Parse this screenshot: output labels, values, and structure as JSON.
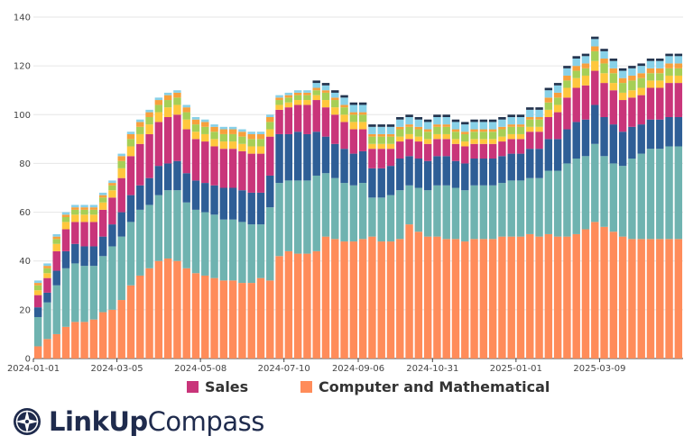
{
  "chart_data": {
    "type": "bar",
    "stacked": true,
    "ylim": [
      0,
      140
    ],
    "y_ticks": [
      0,
      20,
      40,
      60,
      80,
      100,
      120,
      140
    ],
    "x_tick_labels": [
      "2024-01-01",
      "2024-03-05",
      "2024-05-08",
      "2024-07-10",
      "2024-09-06",
      "2024-10-31",
      "2025-01-01",
      "2025-03-09"
    ],
    "grid": "horizontal",
    "legend_position": "bottom",
    "legend_visible": [
      "Sales",
      "Computer and Mathematical"
    ],
    "colors": [
      "#ff8c5a",
      "#6fb3b0",
      "#2e5e96",
      "#c9357a",
      "#ffc73d",
      "#a6cf56",
      "#f7a03c",
      "#88d1e8",
      "#23344f"
    ],
    "x": [
      "2024-01-01",
      "2024-01-08",
      "2024-01-15",
      "2024-01-22",
      "2024-01-29",
      "2024-02-05",
      "2024-02-12",
      "2024-02-19",
      "2024-02-26",
      "2024-03-05",
      "2024-03-12",
      "2024-03-19",
      "2024-03-26",
      "2024-04-02",
      "2024-04-09",
      "2024-04-16",
      "2024-04-23",
      "2024-04-30",
      "2024-05-08",
      "2024-05-15",
      "2024-05-22",
      "2024-05-29",
      "2024-06-05",
      "2024-06-12",
      "2024-06-19",
      "2024-06-26",
      "2024-07-03",
      "2024-07-10",
      "2024-07-17",
      "2024-07-24",
      "2024-07-31",
      "2024-08-07",
      "2024-08-14",
      "2024-08-21",
      "2024-08-28",
      "2024-09-06",
      "2024-09-13",
      "2024-09-20",
      "2024-09-27",
      "2024-10-04",
      "2024-10-11",
      "2024-10-18",
      "2024-10-25",
      "2024-10-31",
      "2024-11-07",
      "2024-11-14",
      "2024-11-21",
      "2024-11-28",
      "2024-12-05",
      "2024-12-12",
      "2024-12-19",
      "2024-12-26",
      "2025-01-01",
      "2025-01-08",
      "2025-01-15",
      "2025-01-22",
      "2025-01-29",
      "2025-02-05",
      "2025-02-12",
      "2025-02-19",
      "2025-02-26",
      "2025-03-09",
      "2025-03-16",
      "2025-03-23",
      "2025-03-30",
      "2025-04-06",
      "2025-04-13",
      "2025-04-20",
      "2025-04-27",
      "2025-05-04"
    ],
    "series": [
      {
        "name": "Computer and Mathematical",
        "values": [
          5,
          8,
          10,
          13,
          15,
          15,
          16,
          19,
          20,
          24,
          30,
          34,
          37,
          40,
          41,
          40,
          37,
          35,
          34,
          33,
          32,
          32,
          31,
          31,
          33,
          32,
          42,
          44,
          43,
          43,
          44,
          50,
          49,
          48,
          48,
          49,
          50,
          48,
          48,
          49,
          55,
          52,
          50,
          50,
          49,
          49,
          48,
          49,
          49,
          49,
          50,
          50,
          50,
          51,
          50,
          51,
          50,
          50,
          51,
          53,
          56,
          54,
          52,
          50,
          49,
          49,
          49,
          49,
          49,
          49
        ]
      },
      {
        "name": "",
        "values": [
          12,
          15,
          20,
          24,
          24,
          23,
          22,
          23,
          26,
          26,
          26,
          27,
          26,
          27,
          28,
          29,
          27,
          26,
          26,
          26,
          25,
          25,
          25,
          24,
          22,
          30,
          30,
          29,
          30,
          30,
          31,
          26,
          25,
          24,
          23,
          23,
          16,
          18,
          19,
          20,
          16,
          18,
          19,
          21,
          22,
          21,
          21,
          22,
          22,
          22,
          22,
          23,
          23,
          23,
          24,
          26,
          27,
          30,
          31,
          30,
          32,
          29,
          28,
          29,
          33,
          35,
          37,
          37,
          38,
          38
        ]
      },
      {
        "name": "",
        "values": [
          4,
          4,
          6,
          7,
          8,
          8,
          8,
          8,
          9,
          10,
          11,
          10,
          11,
          12,
          11,
          12,
          12,
          12,
          12,
          12,
          13,
          13,
          13,
          13,
          13,
          13,
          20,
          19,
          20,
          19,
          18,
          15,
          14,
          14,
          13,
          13,
          12,
          12,
          12,
          13,
          12,
          12,
          12,
          12,
          12,
          11,
          11,
          11,
          11,
          11,
          11,
          11,
          11,
          12,
          12,
          13,
          13,
          14,
          15,
          15,
          16,
          16,
          16,
          14,
          13,
          12,
          12,
          12,
          12,
          12
        ]
      },
      {
        "name": "Sales",
        "values": [
          5,
          6,
          8,
          9,
          9,
          10,
          10,
          11,
          11,
          14,
          16,
          17,
          18,
          18,
          19,
          19,
          18,
          17,
          17,
          16,
          16,
          16,
          16,
          16,
          16,
          16,
          10,
          11,
          11,
          12,
          13,
          12,
          12,
          11,
          10,
          9,
          8,
          8,
          7,
          7,
          7,
          7,
          7,
          7,
          7,
          7,
          7,
          6,
          6,
          6,
          6,
          6,
          6,
          7,
          7,
          9,
          11,
          13,
          14,
          14,
          14,
          14,
          14,
          13,
          12,
          12,
          13,
          13,
          14,
          14
        ]
      },
      {
        "name": "",
        "values": [
          2,
          2,
          3,
          3,
          3,
          3,
          3,
          3,
          3,
          4,
          4,
          4,
          4,
          4,
          4,
          4,
          4,
          3,
          3,
          3,
          3,
          3,
          3,
          3,
          3,
          3,
          2,
          2,
          2,
          2,
          2,
          3,
          3,
          3,
          3,
          3,
          2,
          2,
          2,
          2,
          2,
          2,
          2,
          2,
          2,
          2,
          2,
          2,
          2,
          2,
          2,
          2,
          2,
          2,
          2,
          3,
          3,
          4,
          4,
          4,
          4,
          4,
          3,
          3,
          3,
          3,
          3,
          3,
          3,
          3
        ]
      },
      {
        "name": "",
        "values": [
          2,
          2,
          2,
          2,
          2,
          2,
          2,
          2,
          2,
          3,
          3,
          3,
          3,
          3,
          3,
          3,
          3,
          3,
          3,
          3,
          3,
          3,
          3,
          3,
          3,
          3,
          2,
          2,
          2,
          2,
          2,
          3,
          3,
          3,
          3,
          3,
          3,
          3,
          3,
          3,
          3,
          3,
          3,
          3,
          3,
          3,
          3,
          3,
          3,
          3,
          3,
          3,
          3,
          3,
          3,
          3,
          3,
          3,
          3,
          3,
          4,
          4,
          4,
          4,
          4,
          4,
          3,
          3,
          3,
          3
        ]
      },
      {
        "name": "",
        "values": [
          1,
          1,
          1,
          1,
          1,
          1,
          1,
          1,
          1,
          2,
          2,
          2,
          2,
          2,
          2,
          2,
          2,
          2,
          2,
          2,
          2,
          2,
          2,
          2,
          2,
          2,
          1,
          1,
          1,
          1,
          1,
          1,
          1,
          1,
          1,
          1,
          1,
          1,
          1,
          1,
          1,
          1,
          1,
          1,
          1,
          1,
          1,
          1,
          1,
          1,
          1,
          1,
          1,
          1,
          1,
          2,
          2,
          2,
          2,
          2,
          2,
          2,
          2,
          2,
          2,
          2,
          2,
          2,
          2,
          2
        ]
      },
      {
        "name": "",
        "values": [
          1,
          1,
          1,
          1,
          1,
          1,
          1,
          1,
          1,
          1,
          1,
          1,
          1,
          1,
          1,
          1,
          1,
          1,
          1,
          1,
          1,
          1,
          1,
          1,
          1,
          1,
          1,
          1,
          1,
          1,
          2,
          2,
          2,
          3,
          3,
          3,
          3,
          3,
          3,
          3,
          3,
          3,
          3,
          3,
          3,
          3,
          3,
          3,
          3,
          3,
          3,
          3,
          3,
          3,
          3,
          3,
          3,
          3,
          3,
          3,
          3,
          3,
          3,
          3,
          3,
          3,
          3,
          3,
          3,
          3
        ]
      },
      {
        "name": "",
        "values": [
          0,
          0,
          0,
          0,
          0,
          0,
          0,
          0,
          0,
          0,
          0,
          0,
          0,
          0,
          0,
          0,
          0,
          0,
          0,
          0,
          0,
          0,
          0,
          0,
          0,
          0,
          0,
          0,
          0,
          0,
          1,
          1,
          1,
          1,
          1,
          1,
          1,
          1,
          1,
          1,
          1,
          1,
          1,
          1,
          1,
          1,
          1,
          1,
          1,
          1,
          1,
          1,
          1,
          1,
          1,
          1,
          1,
          1,
          1,
          1,
          1,
          1,
          1,
          1,
          1,
          1,
          1,
          1,
          1,
          1
        ]
      }
    ]
  },
  "legend": {
    "sales_label": "Sales",
    "sales_color": "#c9357a",
    "cm_label": "Computer and Mathematical",
    "cm_color": "#ff8c5a"
  },
  "brand": {
    "bold": "LinkUp",
    "light": "Compass",
    "color": "#1f2b4d"
  }
}
